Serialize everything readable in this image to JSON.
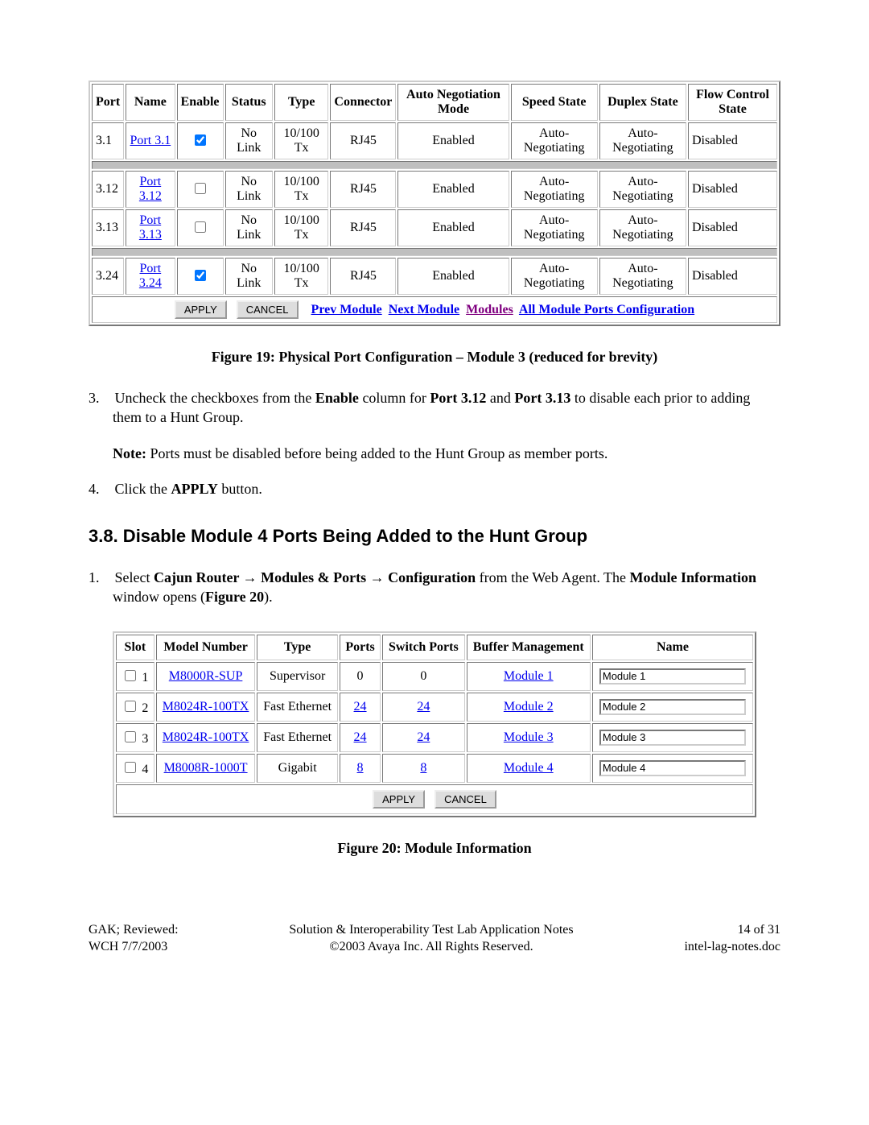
{
  "portTable": {
    "headers": [
      "Port",
      "Name",
      "Enable",
      "Status",
      "Type",
      "Connector",
      "Auto Negotiation Mode",
      "Speed State",
      "Duplex State",
      "Flow Control State"
    ],
    "rows": [
      {
        "port": "3.1",
        "name": "Port 3.1",
        "enabled": true,
        "status": "No Link",
        "type": "10/100 Tx",
        "connector": "RJ45",
        "auto": "Enabled",
        "speed": "Auto-Negotiating",
        "duplex": "Auto-Negotiating",
        "flow": "Disabled"
      },
      {
        "port": "3.12",
        "name": "Port 3.12",
        "enabled": false,
        "status": "No Link",
        "type": "10/100 Tx",
        "connector": "RJ45",
        "auto": "Enabled",
        "speed": "Auto-Negotiating",
        "duplex": "Auto-Negotiating",
        "flow": "Disabled"
      },
      {
        "port": "3.13",
        "name": "Port 3.13",
        "enabled": false,
        "status": "No Link",
        "type": "10/100 Tx",
        "connector": "RJ45",
        "auto": "Enabled",
        "speed": "Auto-Negotiating",
        "duplex": "Auto-Negotiating",
        "flow": "Disabled"
      },
      {
        "port": "3.24",
        "name": "Port 3.24",
        "enabled": true,
        "status": "No Link",
        "type": "10/100 Tx",
        "connector": "RJ45",
        "auto": "Enabled",
        "speed": "Auto-Negotiating",
        "duplex": "Auto-Negotiating",
        "flow": "Disabled"
      }
    ],
    "spacerAfter": [
      0,
      2
    ],
    "buttons": {
      "apply": "APPLY",
      "cancel": "CANCEL"
    },
    "navLinks": {
      "prev": "Prev Module",
      "next": "Next Module",
      "modules": "Modules",
      "all": "All Module Ports Configuration"
    }
  },
  "fig19": "Figure 19: Physical Port Configuration – Module 3 (reduced for brevity)",
  "step3_a": "Uncheck the checkboxes from the ",
  "step3_enable": "Enable",
  "step3_b": " column for ",
  "step3_port312": "Port 3.12",
  "step3_c": " and ",
  "step3_port313": "Port 3.13",
  "step3_d": " to disable each prior to adding them to a Hunt Group.",
  "note_label": "Note:",
  "note_text": " Ports must be disabled before being added to the Hunt Group as member ports.",
  "step4_a": "Click the ",
  "step4_apply": "APPLY",
  "step4_b": " button.",
  "heading38": "3.8. Disable Module 4 Ports Being Added to the Hunt Group",
  "step38_1_a": "Select ",
  "step38_1_path1": "Cajun Router",
  "step38_1_arrow": " → ",
  "step38_1_path2": "Modules & Ports",
  "step38_1_path3": "Configuration",
  "step38_1_b": " from the Web Agent.  The ",
  "step38_1_mi": "Module Information",
  "step38_1_c": " window opens (",
  "step38_1_fig": "Figure 20",
  "step38_1_d": ").",
  "modTable": {
    "headers": [
      "Slot",
      "Model Number",
      "Type",
      "Ports",
      "Switch Ports",
      "Buffer Management",
      "Name"
    ],
    "rows": [
      {
        "slot": "1",
        "model": "M8000R-SUP",
        "type": "Supervisor",
        "ports": "0",
        "swports": "0",
        "buffer": "Module 1",
        "name": "Module 1",
        "portsLink": false
      },
      {
        "slot": "2",
        "model": "M8024R-100TX",
        "type": "Fast Ethernet",
        "ports": "24",
        "swports": "24",
        "buffer": "Module 2",
        "name": "Module 2",
        "portsLink": true
      },
      {
        "slot": "3",
        "model": "M8024R-100TX",
        "type": "Fast Ethernet",
        "ports": "24",
        "swports": "24",
        "buffer": "Module 3",
        "name": "Module 3",
        "portsLink": true
      },
      {
        "slot": "4",
        "model": "M8008R-1000T",
        "type": "Gigabit",
        "ports": "8",
        "swports": "8",
        "buffer": "Module 4",
        "name": "Module 4",
        "portsLink": true
      }
    ],
    "buttons": {
      "apply": "APPLY",
      "cancel": "CANCEL"
    }
  },
  "fig20": "Figure 20: Module Information",
  "footer": {
    "left1": "GAK; Reviewed:",
    "left2": "WCH 7/7/2003",
    "center1": "Solution & Interoperability Test Lab Application Notes",
    "center2": "©2003 Avaya Inc. All Rights Reserved.",
    "right1": "14 of 31",
    "right2": "intel-lag-notes.doc"
  }
}
